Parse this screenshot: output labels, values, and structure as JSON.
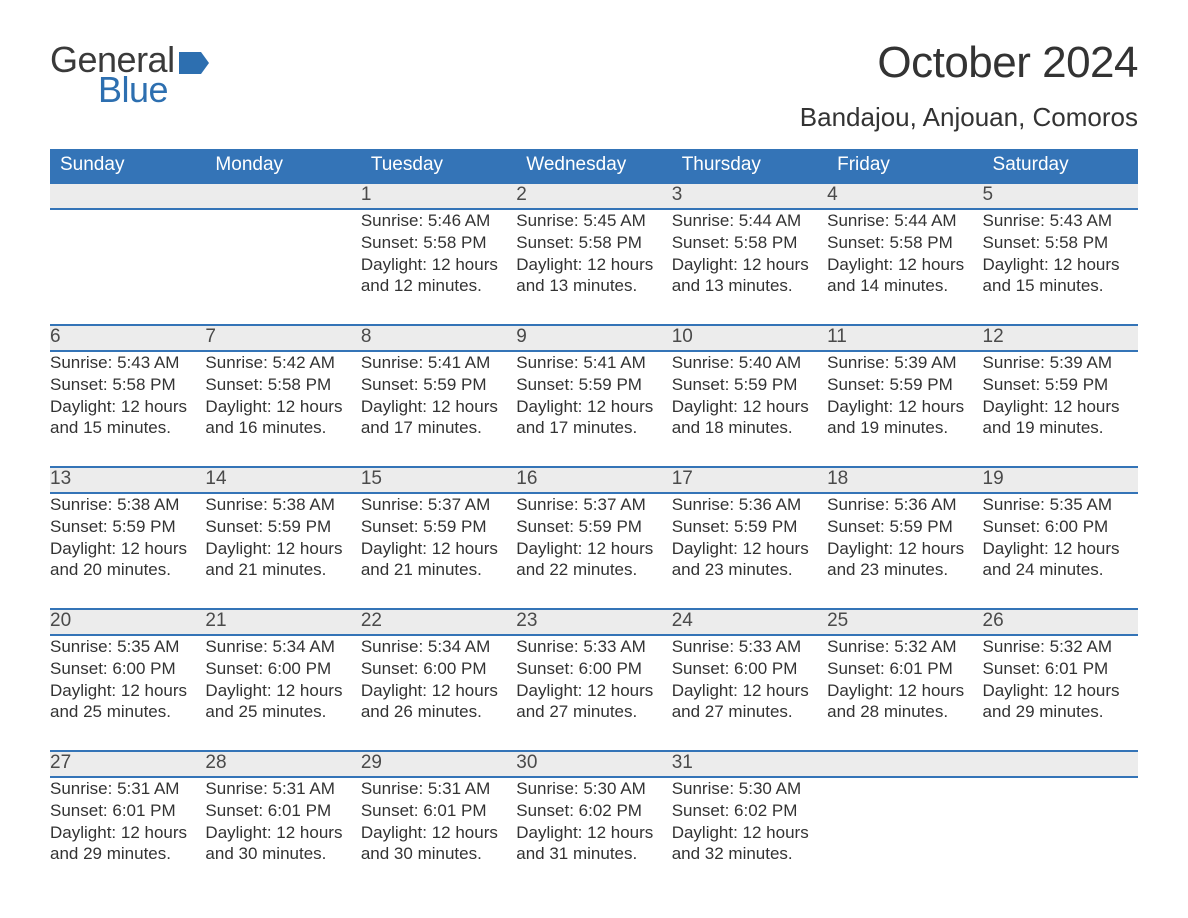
{
  "logo": {
    "general": "General",
    "blue": "Blue",
    "flag_color": "#2d6fb0"
  },
  "title": "October 2024",
  "location": "Bandajou, Anjouan, Comoros",
  "colors": {
    "header_bg": "#3474b7",
    "header_text": "#ffffff",
    "daynum_bg": "#ececec",
    "row_divider": "#3474b7",
    "body_text": "#333333",
    "background": "#ffffff"
  },
  "weekdays": [
    "Sunday",
    "Monday",
    "Tuesday",
    "Wednesday",
    "Thursday",
    "Friday",
    "Saturday"
  ],
  "weeks": [
    [
      null,
      null,
      {
        "day": "1",
        "sunrise": "Sunrise: 5:46 AM",
        "sunset": "Sunset: 5:58 PM",
        "daylight1": "Daylight: 12 hours",
        "daylight2": "and 12 minutes."
      },
      {
        "day": "2",
        "sunrise": "Sunrise: 5:45 AM",
        "sunset": "Sunset: 5:58 PM",
        "daylight1": "Daylight: 12 hours",
        "daylight2": "and 13 minutes."
      },
      {
        "day": "3",
        "sunrise": "Sunrise: 5:44 AM",
        "sunset": "Sunset: 5:58 PM",
        "daylight1": "Daylight: 12 hours",
        "daylight2": "and 13 minutes."
      },
      {
        "day": "4",
        "sunrise": "Sunrise: 5:44 AM",
        "sunset": "Sunset: 5:58 PM",
        "daylight1": "Daylight: 12 hours",
        "daylight2": "and 14 minutes."
      },
      {
        "day": "5",
        "sunrise": "Sunrise: 5:43 AM",
        "sunset": "Sunset: 5:58 PM",
        "daylight1": "Daylight: 12 hours",
        "daylight2": "and 15 minutes."
      }
    ],
    [
      {
        "day": "6",
        "sunrise": "Sunrise: 5:43 AM",
        "sunset": "Sunset: 5:58 PM",
        "daylight1": "Daylight: 12 hours",
        "daylight2": "and 15 minutes."
      },
      {
        "day": "7",
        "sunrise": "Sunrise: 5:42 AM",
        "sunset": "Sunset: 5:58 PM",
        "daylight1": "Daylight: 12 hours",
        "daylight2": "and 16 minutes."
      },
      {
        "day": "8",
        "sunrise": "Sunrise: 5:41 AM",
        "sunset": "Sunset: 5:59 PM",
        "daylight1": "Daylight: 12 hours",
        "daylight2": "and 17 minutes."
      },
      {
        "day": "9",
        "sunrise": "Sunrise: 5:41 AM",
        "sunset": "Sunset: 5:59 PM",
        "daylight1": "Daylight: 12 hours",
        "daylight2": "and 17 minutes."
      },
      {
        "day": "10",
        "sunrise": "Sunrise: 5:40 AM",
        "sunset": "Sunset: 5:59 PM",
        "daylight1": "Daylight: 12 hours",
        "daylight2": "and 18 minutes."
      },
      {
        "day": "11",
        "sunrise": "Sunrise: 5:39 AM",
        "sunset": "Sunset: 5:59 PM",
        "daylight1": "Daylight: 12 hours",
        "daylight2": "and 19 minutes."
      },
      {
        "day": "12",
        "sunrise": "Sunrise: 5:39 AM",
        "sunset": "Sunset: 5:59 PM",
        "daylight1": "Daylight: 12 hours",
        "daylight2": "and 19 minutes."
      }
    ],
    [
      {
        "day": "13",
        "sunrise": "Sunrise: 5:38 AM",
        "sunset": "Sunset: 5:59 PM",
        "daylight1": "Daylight: 12 hours",
        "daylight2": "and 20 minutes."
      },
      {
        "day": "14",
        "sunrise": "Sunrise: 5:38 AM",
        "sunset": "Sunset: 5:59 PM",
        "daylight1": "Daylight: 12 hours",
        "daylight2": "and 21 minutes."
      },
      {
        "day": "15",
        "sunrise": "Sunrise: 5:37 AM",
        "sunset": "Sunset: 5:59 PM",
        "daylight1": "Daylight: 12 hours",
        "daylight2": "and 21 minutes."
      },
      {
        "day": "16",
        "sunrise": "Sunrise: 5:37 AM",
        "sunset": "Sunset: 5:59 PM",
        "daylight1": "Daylight: 12 hours",
        "daylight2": "and 22 minutes."
      },
      {
        "day": "17",
        "sunrise": "Sunrise: 5:36 AM",
        "sunset": "Sunset: 5:59 PM",
        "daylight1": "Daylight: 12 hours",
        "daylight2": "and 23 minutes."
      },
      {
        "day": "18",
        "sunrise": "Sunrise: 5:36 AM",
        "sunset": "Sunset: 5:59 PM",
        "daylight1": "Daylight: 12 hours",
        "daylight2": "and 23 minutes."
      },
      {
        "day": "19",
        "sunrise": "Sunrise: 5:35 AM",
        "sunset": "Sunset: 6:00 PM",
        "daylight1": "Daylight: 12 hours",
        "daylight2": "and 24 minutes."
      }
    ],
    [
      {
        "day": "20",
        "sunrise": "Sunrise: 5:35 AM",
        "sunset": "Sunset: 6:00 PM",
        "daylight1": "Daylight: 12 hours",
        "daylight2": "and 25 minutes."
      },
      {
        "day": "21",
        "sunrise": "Sunrise: 5:34 AM",
        "sunset": "Sunset: 6:00 PM",
        "daylight1": "Daylight: 12 hours",
        "daylight2": "and 25 minutes."
      },
      {
        "day": "22",
        "sunrise": "Sunrise: 5:34 AM",
        "sunset": "Sunset: 6:00 PM",
        "daylight1": "Daylight: 12 hours",
        "daylight2": "and 26 minutes."
      },
      {
        "day": "23",
        "sunrise": "Sunrise: 5:33 AM",
        "sunset": "Sunset: 6:00 PM",
        "daylight1": "Daylight: 12 hours",
        "daylight2": "and 27 minutes."
      },
      {
        "day": "24",
        "sunrise": "Sunrise: 5:33 AM",
        "sunset": "Sunset: 6:00 PM",
        "daylight1": "Daylight: 12 hours",
        "daylight2": "and 27 minutes."
      },
      {
        "day": "25",
        "sunrise": "Sunrise: 5:32 AM",
        "sunset": "Sunset: 6:01 PM",
        "daylight1": "Daylight: 12 hours",
        "daylight2": "and 28 minutes."
      },
      {
        "day": "26",
        "sunrise": "Sunrise: 5:32 AM",
        "sunset": "Sunset: 6:01 PM",
        "daylight1": "Daylight: 12 hours",
        "daylight2": "and 29 minutes."
      }
    ],
    [
      {
        "day": "27",
        "sunrise": "Sunrise: 5:31 AM",
        "sunset": "Sunset: 6:01 PM",
        "daylight1": "Daylight: 12 hours",
        "daylight2": "and 29 minutes."
      },
      {
        "day": "28",
        "sunrise": "Sunrise: 5:31 AM",
        "sunset": "Sunset: 6:01 PM",
        "daylight1": "Daylight: 12 hours",
        "daylight2": "and 30 minutes."
      },
      {
        "day": "29",
        "sunrise": "Sunrise: 5:31 AM",
        "sunset": "Sunset: 6:01 PM",
        "daylight1": "Daylight: 12 hours",
        "daylight2": "and 30 minutes."
      },
      {
        "day": "30",
        "sunrise": "Sunrise: 5:30 AM",
        "sunset": "Sunset: 6:02 PM",
        "daylight1": "Daylight: 12 hours",
        "daylight2": "and 31 minutes."
      },
      {
        "day": "31",
        "sunrise": "Sunrise: 5:30 AM",
        "sunset": "Sunset: 6:02 PM",
        "daylight1": "Daylight: 12 hours",
        "daylight2": "and 32 minutes."
      },
      null,
      null
    ]
  ]
}
